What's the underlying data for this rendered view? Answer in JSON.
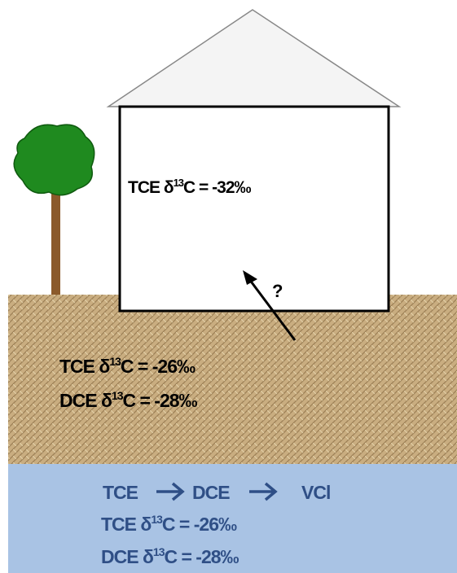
{
  "house_label": {
    "prefix": "TCE δ",
    "sup": "13",
    "suffix": "C = -32‰"
  },
  "soil_path_label": "?",
  "soil_labels": [
    {
      "prefix": "TCE δ",
      "sup": "13",
      "suffix": "C = -26‰"
    },
    {
      "prefix": "DCE δ",
      "sup": "13",
      "suffix": "C = -28‰"
    }
  ],
  "groundwater": {
    "reaction": [
      "TCE",
      "DCE",
      "VCl"
    ],
    "labels": [
      {
        "prefix": "TCE δ",
        "sup": "13",
        "suffix": "C = -26‰"
      },
      {
        "prefix": "DCE δ",
        "sup": "13",
        "suffix": "C = -28‰"
      }
    ]
  }
}
